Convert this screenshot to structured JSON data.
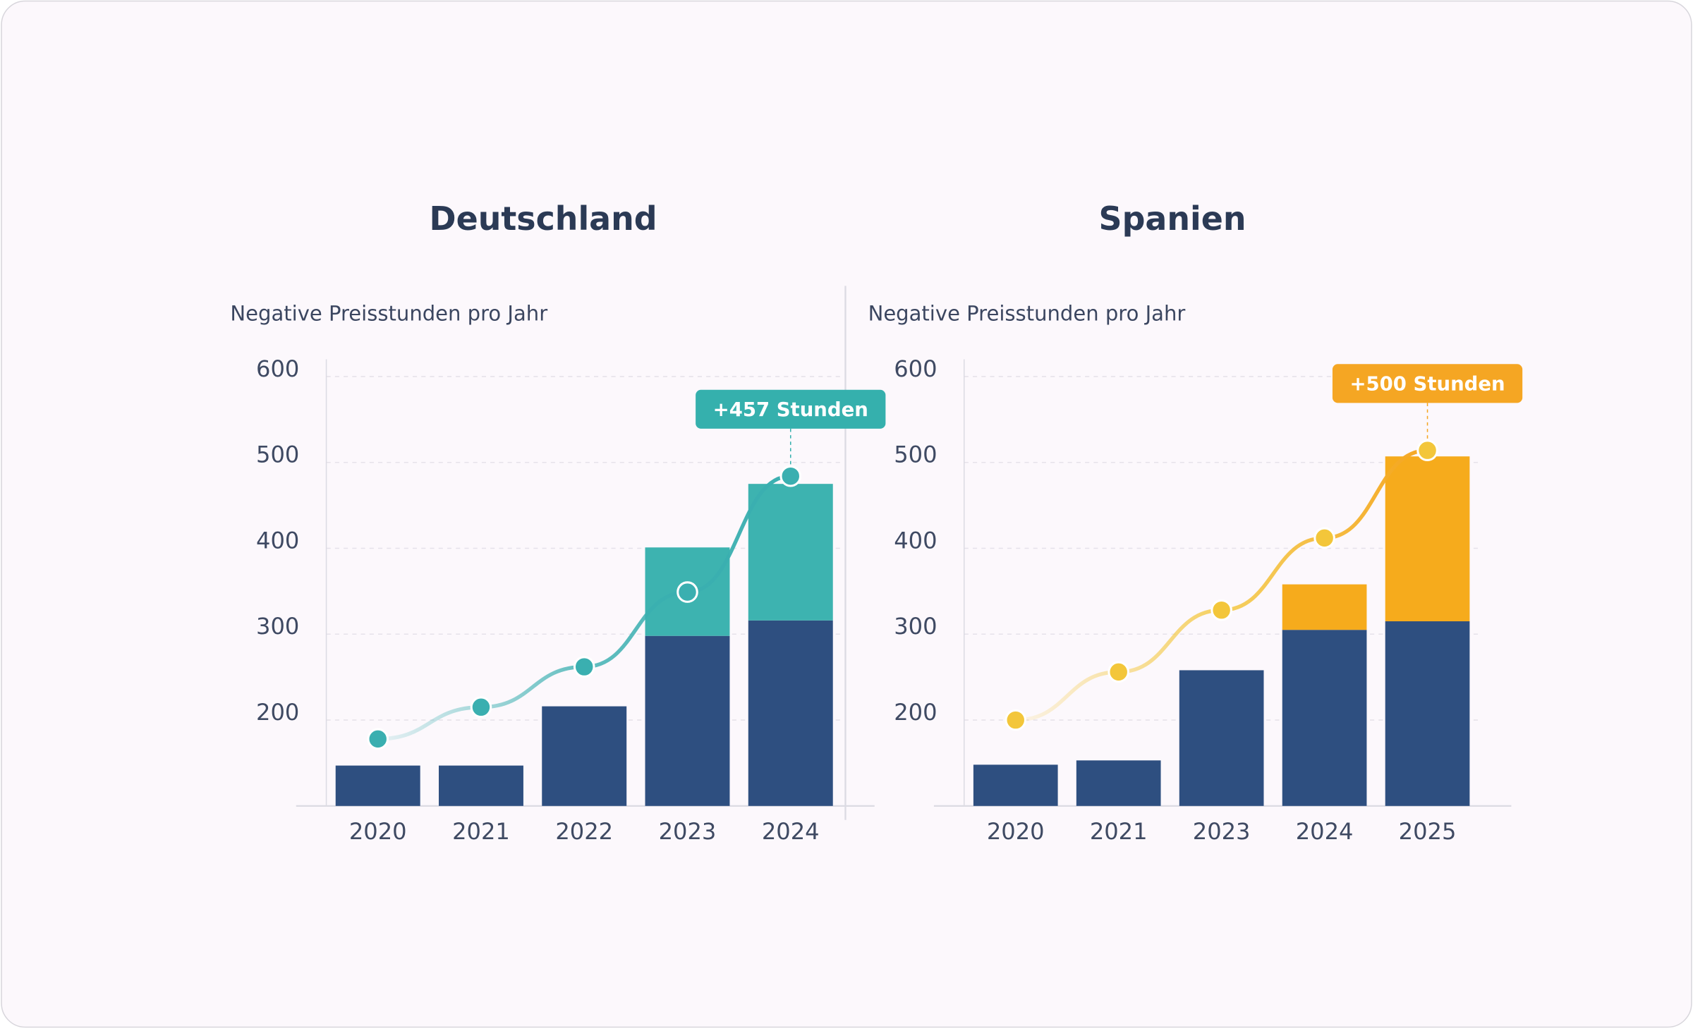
{
  "chart_data": [
    {
      "type": "bar",
      "title": "Deutschland",
      "y_label": "Negative Preisstunden pro Jahr",
      "categories": [
        "2020",
        "2021",
        "2022",
        "2023",
        "2024"
      ],
      "ylim": [
        100,
        600
      ],
      "yticks": [
        200,
        300,
        400,
        500,
        600
      ],
      "grid": true,
      "series": [
        {
          "color": "#2e4f80",
          "values": [
            147,
            147,
            216,
            298,
            316
          ]
        },
        {
          "color": "#3db3b0",
          "values": [
            null,
            null,
            null,
            103,
            159
          ]
        },
        {
          "type": "line",
          "color": "#3aafb0",
          "values": [
            178,
            215,
            262,
            349,
            484
          ]
        }
      ],
      "annotation": "+457 Stunden",
      "annotation_color": "#35b0ad"
    },
    {
      "type": "bar",
      "title": "Spanien",
      "y_label": "Negative Preisstunden pro Jahr",
      "categories": [
        "2020",
        "2021",
        "2023",
        "2024",
        "2025"
      ],
      "ylim": [
        100,
        600
      ],
      "yticks": [
        200,
        300,
        400,
        500,
        600
      ],
      "grid": true,
      "series": [
        {
          "color": "#2e4f80",
          "values": [
            148,
            153,
            258,
            305,
            315
          ]
        },
        {
          "color": "#f6ab1c",
          "values": [
            null,
            null,
            null,
            53,
            192
          ]
        },
        {
          "type": "line",
          "color": "#f3c63a",
          "values": [
            200,
            256,
            328,
            412,
            514
          ]
        }
      ],
      "annotation": "+500 Stunden",
      "annotation_color": "#f5a623"
    }
  ]
}
